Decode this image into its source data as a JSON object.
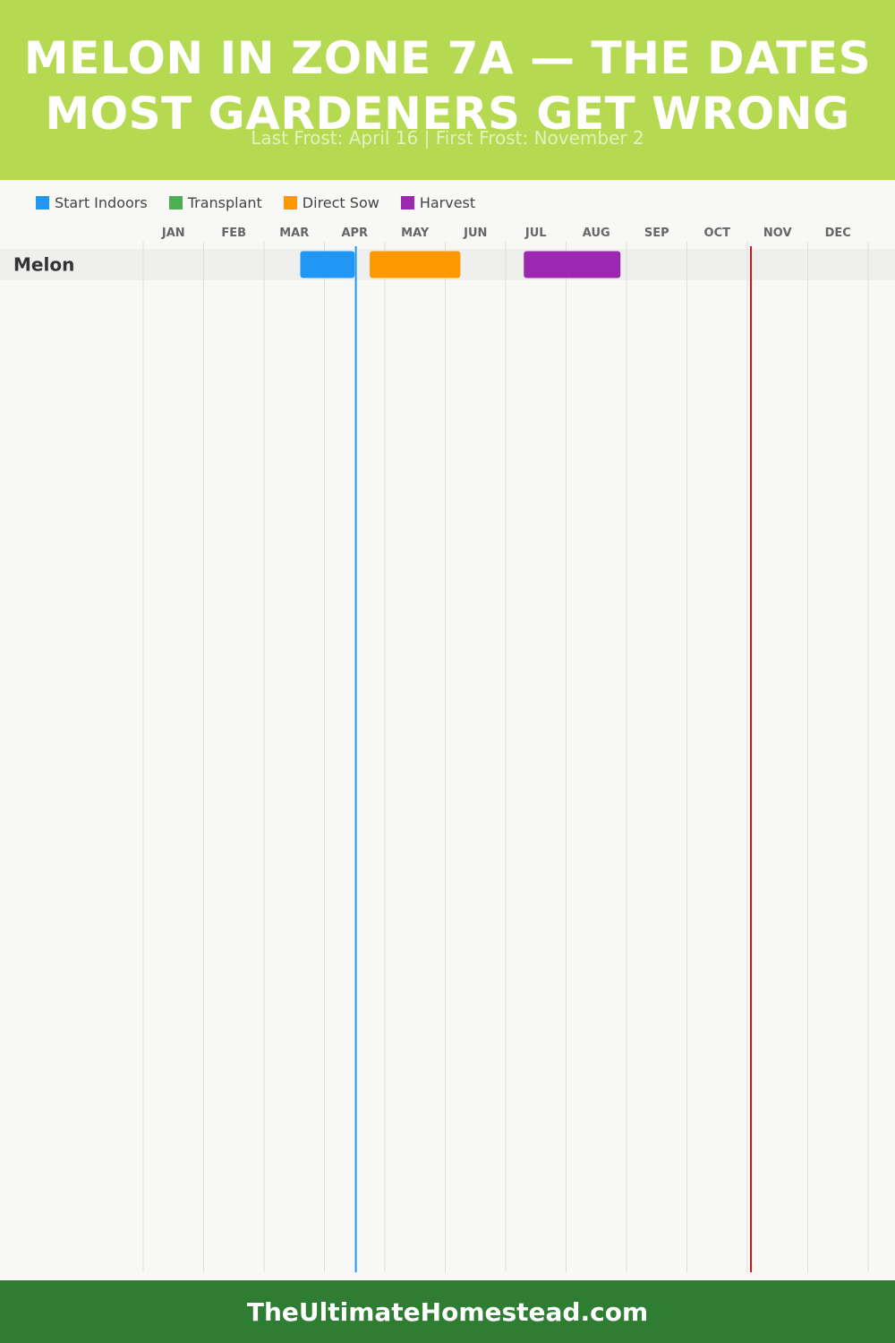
{
  "title": "MELON IN ZONE 7A — THE DATES MOST GARDENERS GET WRONG",
  "subtitle": "Last Frost: April 16 | First Frost: November 2",
  "footer": "TheUltimateHomestead.com",
  "legend": [
    {
      "label": "Start Indoors",
      "color": "#2196f3"
    },
    {
      "label": "Transplant",
      "color": "#4caf50"
    },
    {
      "label": "Direct Sow",
      "color": "#ff9800"
    },
    {
      "label": "Harvest",
      "color": "#9c27b0"
    }
  ],
  "chart_data": {
    "type": "gantt",
    "months": [
      "JAN",
      "FEB",
      "MAR",
      "APR",
      "MAY",
      "JUN",
      "JUL",
      "AUG",
      "SEP",
      "OCT",
      "NOV",
      "DEC"
    ],
    "rows": [
      {
        "crop": "Melon",
        "bars": [
          {
            "activity": "Start Indoors",
            "start": "Mar 19",
            "end": "Apr 16",
            "start_month": 3.6,
            "end_month": 4.5,
            "color": "#2196f3"
          },
          {
            "activity": "Direct Sow",
            "start": "Apr 23",
            "end": "Jun 7",
            "start_month": 4.75,
            "end_month": 6.25,
            "color": "#ff9800"
          },
          {
            "activity": "Harvest",
            "start": "Jul 9",
            "end": "Aug 25",
            "start_month": 7.3,
            "end_month": 8.9,
            "color": "#9c27b0"
          }
        ]
      }
    ],
    "markers": [
      {
        "name": "Last Frost",
        "date": "April 16",
        "month": 4.52,
        "color": "#2196f3"
      },
      {
        "name": "First Frost",
        "date": "November 2",
        "month": 11.06,
        "color": "#b71c1c"
      }
    ]
  }
}
